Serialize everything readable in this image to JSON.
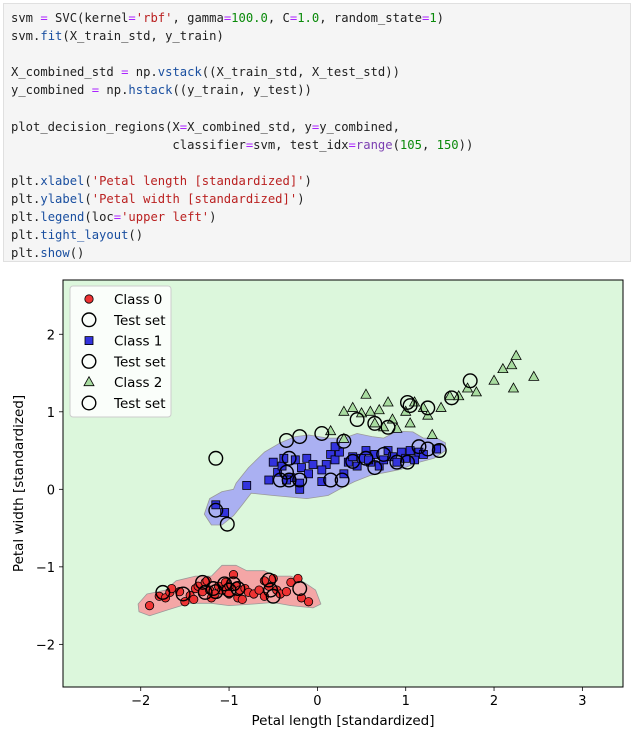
{
  "code": {
    "lines": [
      [
        {
          "t": "svm "
        },
        {
          "t": "=",
          "c": "op"
        },
        {
          "t": " SVC(kernel"
        },
        {
          "t": "=",
          "c": "op"
        },
        {
          "t": "'rbf'",
          "c": "str"
        },
        {
          "t": ", gamma"
        },
        {
          "t": "=",
          "c": "op"
        },
        {
          "t": "100.0",
          "c": "num"
        },
        {
          "t": ", C"
        },
        {
          "t": "=",
          "c": "op"
        },
        {
          "t": "1.0",
          "c": "num"
        },
        {
          "t": ", random_state"
        },
        {
          "t": "=",
          "c": "op"
        },
        {
          "t": "1",
          "c": "num"
        },
        {
          "t": ")"
        }
      ],
      [
        {
          "t": "svm."
        },
        {
          "t": "fit",
          "c": "fn"
        },
        {
          "t": "(X_train_std, y_train)"
        }
      ],
      [],
      [
        {
          "t": "X_combined_std "
        },
        {
          "t": "=",
          "c": "op"
        },
        {
          "t": " np."
        },
        {
          "t": "vstack",
          "c": "fn"
        },
        {
          "t": "((X_train_std, X_test_std))"
        }
      ],
      [
        {
          "t": "y_combined "
        },
        {
          "t": "=",
          "c": "op"
        },
        {
          "t": " np."
        },
        {
          "t": "hstack",
          "c": "fn"
        },
        {
          "t": "((y_train, y_test))"
        }
      ],
      [],
      [
        {
          "t": "plot_decision_regions(X"
        },
        {
          "t": "=",
          "c": "op"
        },
        {
          "t": "X_combined_std, y"
        },
        {
          "t": "=",
          "c": "op"
        },
        {
          "t": "y_combined,"
        }
      ],
      [
        {
          "t": "                      classifier"
        },
        {
          "t": "=",
          "c": "op"
        },
        {
          "t": "svm, test_idx"
        },
        {
          "t": "=",
          "c": "op"
        },
        {
          "t": "range",
          "c": "kw"
        },
        {
          "t": "("
        },
        {
          "t": "105",
          "c": "num"
        },
        {
          "t": ", "
        },
        {
          "t": "150",
          "c": "num"
        },
        {
          "t": "))"
        }
      ],
      [],
      [
        {
          "t": "plt."
        },
        {
          "t": "xlabel",
          "c": "fn"
        },
        {
          "t": "("
        },
        {
          "t": "'Petal length [standardized]'",
          "c": "str"
        },
        {
          "t": ")"
        }
      ],
      [
        {
          "t": "plt."
        },
        {
          "t": "ylabel",
          "c": "fn"
        },
        {
          "t": "("
        },
        {
          "t": "'Petal width [standardized]'",
          "c": "str"
        },
        {
          "t": ")"
        }
      ],
      [
        {
          "t": "plt."
        },
        {
          "t": "legend",
          "c": "fn"
        },
        {
          "t": "(loc"
        },
        {
          "t": "=",
          "c": "op"
        },
        {
          "t": "'upper left'",
          "c": "str"
        },
        {
          "t": ")"
        }
      ],
      [
        {
          "t": "plt."
        },
        {
          "t": "tight_layout",
          "c": "fn"
        },
        {
          "t": "()"
        }
      ],
      [
        {
          "t": "plt."
        },
        {
          "t": "show",
          "c": "fn"
        },
        {
          "t": "()"
        }
      ]
    ]
  },
  "chart_data": {
    "type": "scatter",
    "xlabel": "Petal length [standardized]",
    "ylabel": "Petal width [standardized]",
    "xlim": [
      -2.88,
      3.46
    ],
    "ylim": [
      -2.55,
      2.7
    ],
    "xticks": [
      -2,
      -1,
      0,
      1,
      2,
      3
    ],
    "yticks": [
      -2,
      -1,
      0,
      1,
      2
    ],
    "legend_position": "upper left",
    "colors": {
      "background": "#dcf7dc",
      "class0": "#ee3333",
      "class0_region": "#f4a6a6",
      "class1": "#3333dd",
      "class1_region": "#aab0f2",
      "class2": "#a8dca0"
    },
    "legend": [
      {
        "label": "Class 0",
        "marker": "circle"
      },
      {
        "label": "Test set",
        "marker": "ring"
      },
      {
        "label": "Class 1",
        "marker": "square"
      },
      {
        "label": "Test set",
        "marker": "ring"
      },
      {
        "label": "Class 2",
        "marker": "triangle"
      },
      {
        "label": "Test set",
        "marker": "ring"
      }
    ],
    "regions": {
      "class0": [
        [
          -2.03,
          -1.48
        ],
        [
          -1.93,
          -1.35
        ],
        [
          -1.72,
          -1.3
        ],
        [
          -1.6,
          -1.18
        ],
        [
          -1.38,
          -1.12
        ],
        [
          -1.2,
          -1.12
        ],
        [
          -1.08,
          -0.98
        ],
        [
          -0.92,
          -0.98
        ],
        [
          -0.8,
          -1.05
        ],
        [
          -0.6,
          -1.05
        ],
        [
          -0.48,
          -1.12
        ],
        [
          -0.3,
          -1.12
        ],
        [
          -0.15,
          -1.2
        ],
        [
          -0.02,
          -1.3
        ],
        [
          0.04,
          -1.48
        ],
        [
          -0.05,
          -1.53
        ],
        [
          -0.3,
          -1.5
        ],
        [
          -0.5,
          -1.46
        ],
        [
          -0.72,
          -1.48
        ],
        [
          -1.0,
          -1.5
        ],
        [
          -1.2,
          -1.47
        ],
        [
          -1.45,
          -1.47
        ],
        [
          -1.68,
          -1.55
        ],
        [
          -1.9,
          -1.63
        ],
        [
          -2.02,
          -1.58
        ]
      ],
      "class1": [
        [
          -1.28,
          -0.32
        ],
        [
          -1.22,
          -0.12
        ],
        [
          -1.08,
          -0.03
        ],
        [
          -0.95,
          0.0
        ],
        [
          -0.92,
          0.08
        ],
        [
          -0.78,
          0.28
        ],
        [
          -0.6,
          0.48
        ],
        [
          -0.42,
          0.6
        ],
        [
          -0.25,
          0.68
        ],
        [
          -0.1,
          0.7
        ],
        [
          0.12,
          0.66
        ],
        [
          0.3,
          0.66
        ],
        [
          0.45,
          0.72
        ],
        [
          0.62,
          0.68
        ],
        [
          0.75,
          0.66
        ],
        [
          0.9,
          0.75
        ],
        [
          1.08,
          0.74
        ],
        [
          1.2,
          0.66
        ],
        [
          1.35,
          0.66
        ],
        [
          1.45,
          0.6
        ],
        [
          1.45,
          0.5
        ],
        [
          1.32,
          0.4
        ],
        [
          1.12,
          0.34
        ],
        [
          0.95,
          0.26
        ],
        [
          0.78,
          0.22
        ],
        [
          0.6,
          0.18
        ],
        [
          0.42,
          0.1
        ],
        [
          0.28,
          0.02
        ],
        [
          0.12,
          -0.08
        ],
        [
          -0.12,
          -0.12
        ],
        [
          -0.3,
          -0.1
        ],
        [
          -0.5,
          -0.08
        ],
        [
          -0.75,
          -0.05
        ],
        [
          -0.85,
          -0.2
        ],
        [
          -0.95,
          -0.34
        ],
        [
          -1.08,
          -0.46
        ],
        [
          -1.2,
          -0.46
        ]
      ]
    },
    "series": [
      {
        "name": "Class 0",
        "marker": "circle",
        "x": [
          -1.9,
          -1.79,
          -1.72,
          -1.67,
          -1.56,
          -1.5,
          -1.44,
          -1.38,
          -1.35,
          -1.3,
          -1.27,
          -1.22,
          -1.2,
          -1.16,
          -1.12,
          -1.08,
          -1.04,
          -1.0,
          -0.95,
          -0.92,
          -0.9,
          -0.88,
          -0.82,
          -0.78,
          -0.72,
          -0.66,
          -0.6,
          -0.55,
          -0.5,
          -0.46,
          -0.42,
          -0.35,
          -0.3,
          -0.22,
          -0.18,
          -0.1,
          -1.65,
          -1.4,
          -1.25,
          -1.0,
          -0.85,
          -0.6
        ],
        "y": [
          -1.5,
          -1.38,
          -1.4,
          -1.33,
          -1.32,
          -1.45,
          -1.37,
          -1.28,
          -1.25,
          -1.32,
          -1.2,
          -1.3,
          -1.4,
          -1.35,
          -1.25,
          -1.3,
          -1.2,
          -1.35,
          -1.1,
          -1.25,
          -1.4,
          -1.3,
          -1.28,
          -1.33,
          -1.35,
          -1.3,
          -1.38,
          -1.25,
          -1.15,
          -1.3,
          -1.35,
          -1.32,
          -1.2,
          -1.15,
          -1.4,
          -1.45,
          -1.28,
          -1.42,
          -1.18,
          -1.25,
          -1.42,
          -1.18
        ]
      },
      {
        "name": "Class 1",
        "marker": "square",
        "x": [
          -1.15,
          -1.05,
          -0.8,
          -0.55,
          -0.5,
          -0.45,
          -0.4,
          -0.38,
          -0.3,
          -0.25,
          -0.2,
          -0.18,
          -0.12,
          -0.1,
          -0.05,
          0.05,
          0.1,
          0.15,
          0.2,
          0.25,
          0.3,
          0.35,
          0.4,
          0.45,
          0.5,
          0.55,
          0.6,
          0.65,
          0.7,
          0.75,
          0.8,
          0.85,
          0.9,
          0.95,
          1.0,
          1.05,
          1.1,
          1.15,
          1.2,
          1.35,
          -0.2,
          -0.35,
          0.05,
          0.58,
          0.2
        ],
        "y": [
          -0.2,
          -0.3,
          0.05,
          0.12,
          0.35,
          0.22,
          0.3,
          0.4,
          0.15,
          0.38,
          0.08,
          0.28,
          0.4,
          0.2,
          0.32,
          0.1,
          0.32,
          0.45,
          0.38,
          0.48,
          0.2,
          0.35,
          0.42,
          0.3,
          0.4,
          0.5,
          0.35,
          0.45,
          0.3,
          0.38,
          0.5,
          0.42,
          0.35,
          0.48,
          0.4,
          0.5,
          0.38,
          0.48,
          0.45,
          0.52,
          0.0,
          0.12,
          0.25,
          0.38,
          0.55
        ]
      },
      {
        "name": "Class 2",
        "marker": "triangle",
        "x": [
          0.3,
          0.3,
          0.4,
          0.5,
          0.55,
          0.6,
          0.65,
          0.7,
          0.75,
          0.8,
          0.85,
          0.9,
          1.0,
          1.05,
          1.1,
          1.2,
          1.25,
          1.3,
          1.4,
          1.5,
          1.6,
          1.7,
          1.8,
          2.0,
          2.1,
          2.2,
          2.25,
          2.22,
          2.45,
          0.15
        ],
        "y": [
          0.65,
          1.0,
          1.05,
          0.98,
          1.22,
          1.0,
          0.85,
          1.02,
          0.8,
          1.12,
          0.9,
          0.78,
          1.0,
          0.85,
          1.12,
          1.05,
          0.95,
          0.7,
          1.05,
          1.2,
          1.2,
          1.3,
          1.25,
          1.4,
          1.55,
          1.6,
          1.72,
          1.3,
          1.45,
          0.75
        ]
      },
      {
        "name": "Test set",
        "marker": "ring",
        "x": [
          -1.75,
          -1.52,
          -1.3,
          -1.27,
          -1.18,
          -1.15,
          -1.05,
          -1.0,
          -0.95,
          -0.9,
          -0.55,
          -0.53,
          -0.5,
          -0.2,
          -1.15,
          -1.15,
          -1.02,
          -0.42,
          -0.35,
          -0.32,
          -0.32,
          -0.2,
          0.15,
          0.28,
          0.4,
          0.55,
          0.65,
          0.75,
          0.9,
          1.02,
          1.15,
          1.25,
          1.38,
          -0.35,
          -0.2,
          0.05,
          0.3,
          0.45,
          0.65,
          0.8,
          1.02,
          1.05,
          1.25,
          1.52,
          1.73
        ],
        "y": [
          -1.33,
          -1.35,
          -1.2,
          -1.33,
          -1.28,
          -1.32,
          -1.22,
          -1.3,
          -1.22,
          -1.28,
          -1.17,
          -1.3,
          -1.38,
          -1.28,
          0.4,
          -0.27,
          -0.45,
          0.12,
          0.22,
          0.12,
          0.4,
          0.12,
          0.12,
          0.12,
          0.36,
          0.4,
          0.28,
          0.45,
          0.35,
          0.35,
          0.55,
          0.52,
          0.5,
          0.63,
          0.68,
          0.72,
          0.62,
          0.9,
          0.85,
          0.8,
          1.12,
          1.08,
          1.05,
          1.18,
          1.4
        ]
      }
    ]
  }
}
